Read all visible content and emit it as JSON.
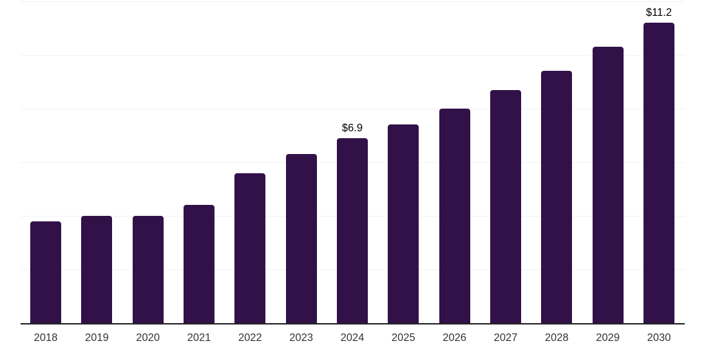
{
  "chart_data": {
    "type": "bar",
    "title": "",
    "xlabel": "",
    "ylabel": "",
    "categories": [
      "2018",
      "2019",
      "2020",
      "2021",
      "2022",
      "2023",
      "2024",
      "2025",
      "2026",
      "2027",
      "2028",
      "2029",
      "2030"
    ],
    "values": [
      3.8,
      4.0,
      4.0,
      4.4,
      5.6,
      6.3,
      6.9,
      7.4,
      8.0,
      8.7,
      9.4,
      10.3,
      11.2
    ],
    "data_labels": {
      "2024": "$6.9",
      "2030": "$11.2"
    },
    "ylim": [
      0,
      12
    ],
    "gridline_values": [
      2,
      4,
      6,
      8,
      10,
      12
    ],
    "grid": "horizontal-only",
    "y_axis_labels_visible": false,
    "legend": "none",
    "colors": {
      "bar": "#321148",
      "axis_line": "#262626",
      "gridline": "#f2f2f2",
      "value_label": "#000000",
      "tick_label": "#333333",
      "background": "#ffffff"
    }
  }
}
